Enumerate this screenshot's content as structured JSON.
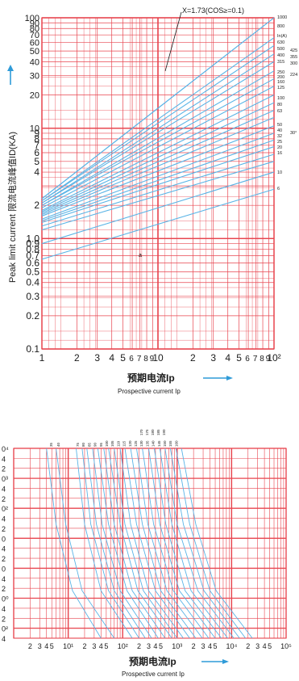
{
  "colors": {
    "grid": "#e8454f",
    "curve": "#5ab4e6",
    "text": "#1a1a1a",
    "axis": "#111111",
    "arrow": "#2f9bd8"
  },
  "chart_data": [
    {
      "type": "line",
      "title": "",
      "xscale": "log",
      "yscale": "log",
      "xlim": [
        1,
        100
      ],
      "ylim": [
        0.1,
        100
      ],
      "grid": true,
      "ylabel": "Peak limit current 限流电流峰值ID(KA)",
      "xlabel_cn": "预期电流Ip",
      "xlabel": "Prospective current Ip",
      "annotation": "X=1.73(COS≥=0.1)",
      "marker": "a",
      "x_tick_labels": [
        "1",
        "2",
        "3",
        "4",
        "5",
        "6",
        "7",
        "8",
        "9",
        "10",
        "2",
        "3",
        "4",
        "5",
        "6",
        "7",
        "8",
        "9",
        "10²"
      ],
      "y_tick_labels": [
        "100",
        "90",
        "80",
        "70",
        "60",
        "50",
        "40",
        "30",
        "20",
        "10",
        "9",
        "8",
        "7",
        "6",
        "5",
        "4",
        "2",
        "1.0",
        "0.9",
        "0.8",
        "0.7",
        "0.6",
        "0.5",
        "0.4",
        "0.3",
        "0.2",
        "0.1"
      ],
      "rating_labels": [
        "1000",
        "800",
        "In(A)",
        "630",
        "500",
        "400",
        "315",
        "250",
        "200",
        "160",
        "125",
        "100",
        "80",
        "63",
        "50",
        "40",
        "32",
        "25",
        "20",
        "16",
        "10",
        "6"
      ],
      "group_labels": [
        "425",
        "355",
        "300",
        "224",
        "30°"
      ],
      "series": [
        {
          "name": "1000",
          "x": [
            1,
            100
          ],
          "y": [
            2.3,
            100
          ]
        },
        {
          "name": "800",
          "x": [
            1,
            100
          ],
          "y": [
            2.3,
            100
          ]
        },
        {
          "name": "630",
          "x": [
            1,
            100
          ],
          "y": [
            2.2,
            66
          ]
        },
        {
          "name": "500",
          "x": [
            1,
            100
          ],
          "y": [
            2.2,
            56
          ]
        },
        {
          "name": "400",
          "x": [
            1,
            100
          ],
          "y": [
            2.1,
            47
          ]
        },
        {
          "name": "315",
          "x": [
            1,
            100
          ],
          "y": [
            2.1,
            40
          ]
        },
        {
          "name": "250",
          "x": [
            1,
            100
          ],
          "y": [
            2.0,
            33
          ]
        },
        {
          "name": "200",
          "x": [
            1,
            100
          ],
          "y": [
            2.0,
            28
          ]
        },
        {
          "name": "160",
          "x": [
            1,
            100
          ],
          "y": [
            1.9,
            24
          ]
        },
        {
          "name": "125",
          "x": [
            1,
            100
          ],
          "y": [
            1.8,
            20
          ]
        },
        {
          "name": "100",
          "x": [
            1,
            100
          ],
          "y": [
            1.75,
            17
          ]
        },
        {
          "name": "80",
          "x": [
            1,
            100
          ],
          "y": [
            1.7,
            14.5
          ]
        },
        {
          "name": "63",
          "x": [
            1,
            100
          ],
          "y": [
            1.65,
            12.5
          ]
        },
        {
          "name": "50",
          "x": [
            1,
            100
          ],
          "y": [
            1.6,
            10.5
          ]
        },
        {
          "name": "40",
          "x": [
            1,
            100
          ],
          "y": [
            1.5,
            9
          ]
        },
        {
          "name": "32",
          "x": [
            1,
            100
          ],
          "y": [
            1.45,
            7.8
          ]
        },
        {
          "name": "25",
          "x": [
            1,
            100
          ],
          "y": [
            1.4,
            6.8
          ]
        },
        {
          "name": "20",
          "x": [
            1,
            100
          ],
          "y": [
            1.3,
            5.8
          ]
        },
        {
          "name": "16",
          "x": [
            1,
            100
          ],
          "y": [
            1.2,
            5
          ]
        },
        {
          "name": "10",
          "x": [
            1,
            100
          ],
          "y": [
            0.9,
            4
          ]
        },
        {
          "name": "6",
          "x": [
            1,
            100
          ],
          "y": [
            0.65,
            2.8
          ]
        }
      ]
    },
    {
      "type": "line",
      "title": "",
      "xscale": "log",
      "xlim": [
        1,
        100000
      ],
      "grid": true,
      "xlabel_cn": "预期电流Ip",
      "xlabel": "Prospective current Ip",
      "x_tick_labels": [
        "2",
        "3",
        "4",
        "5",
        "10¹",
        "2",
        "3",
        "4",
        "5",
        "10²",
        "2",
        "3",
        "4",
        "5",
        "10³",
        "2",
        "3",
        "4",
        "5",
        "10⁴",
        "2",
        "3",
        "4",
        "5",
        "10⁵"
      ],
      "y_tick_labels": [
        "0⁴",
        "4",
        "2",
        "0³",
        "4",
        "2",
        "0²",
        "4",
        "2",
        "0",
        "4",
        "2",
        "0",
        "4",
        "2",
        "0⁰",
        "4",
        "2",
        "0²",
        "4"
      ],
      "top_labels_left": [
        "35",
        "40"
      ],
      "top_labels_right": [
        "75",
        "80",
        "85",
        "90",
        "95",
        "100",
        "105",
        "110",
        "115",
        "120",
        "125",
        "130",
        "135",
        "140",
        "145",
        "150",
        "155",
        "160"
      ],
      "top_labels_stacked": [
        "170",
        "175",
        "180",
        "185",
        "190"
      ],
      "curves": [
        {
          "x": [
            4,
            6,
            12,
            40
          ]
        },
        {
          "x": [
            6,
            9,
            18,
            70
          ]
        },
        {
          "x": [
            14,
            20,
            40,
            150
          ]
        },
        {
          "x": [
            18,
            26,
            55,
            200
          ]
        },
        {
          "x": [
            22,
            33,
            70,
            260
          ]
        },
        {
          "x": [
            28,
            42,
            90,
            340
          ]
        },
        {
          "x": [
            35,
            55,
            120,
            450
          ]
        },
        {
          "x": [
            45,
            70,
            150,
            600
          ]
        },
        {
          "x": [
            55,
            90,
            190,
            800
          ]
        },
        {
          "x": [
            70,
            110,
            240,
            1000
          ]
        },
        {
          "x": [
            90,
            140,
            300,
            1300
          ]
        },
        {
          "x": [
            110,
            180,
            400,
            1700
          ]
        },
        {
          "x": [
            140,
            230,
            500,
            2200
          ]
        },
        {
          "x": [
            180,
            290,
            650,
            2900
          ]
        },
        {
          "x": [
            230,
            370,
            850,
            3800
          ]
        },
        {
          "x": [
            300,
            480,
            1100,
            5000
          ]
        },
        {
          "x": [
            380,
            620,
            1400,
            6500
          ]
        },
        {
          "x": [
            480,
            800,
            1800,
            8500
          ]
        },
        {
          "x": [
            600,
            1000,
            2400,
            11000
          ]
        },
        {
          "x": [
            750,
            1300,
            3100,
            14000
          ]
        },
        {
          "x": [
            950,
            1700,
            4000,
            18000
          ]
        },
        {
          "x": [
            1200,
            2200,
            5200,
            24000
          ]
        }
      ]
    }
  ]
}
